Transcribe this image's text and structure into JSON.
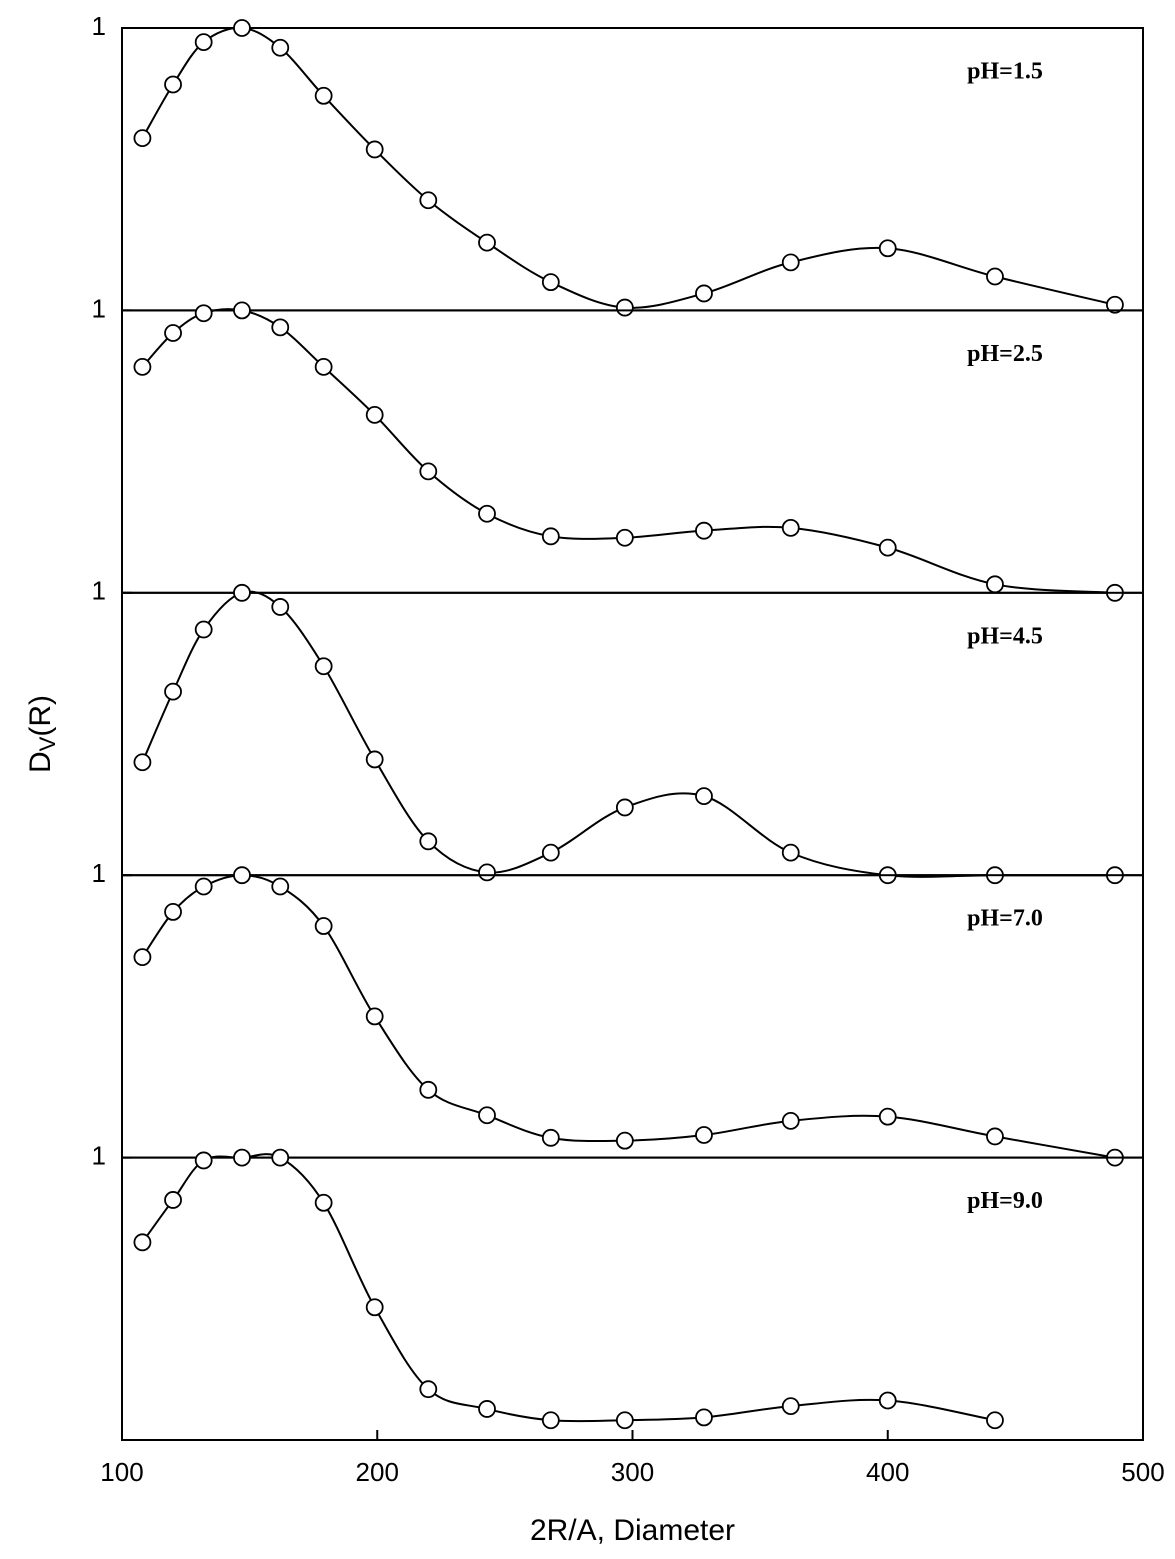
{
  "chart_data": [
    {
      "type": "line",
      "annotation": "pH=1.5",
      "ylabel": "DV(R)",
      "x": [
        108,
        120,
        132,
        147,
        162,
        179,
        199,
        220,
        243,
        268,
        297,
        328,
        362,
        400,
        442,
        489
      ],
      "values": [
        0.61,
        0.8,
        0.95,
        1.0,
        0.93,
        0.76,
        0.57,
        0.39,
        0.24,
        0.1,
        0.01,
        0.06,
        0.17,
        0.22,
        0.12,
        0.02
      ],
      "xlim": [
        100,
        500
      ],
      "ylim": [
        0,
        1
      ],
      "yticks": [
        1
      ],
      "color": "#000000"
    },
    {
      "type": "line",
      "annotation": "pH=2.5",
      "x": [
        108,
        120,
        132,
        147,
        162,
        179,
        199,
        220,
        243,
        268,
        297,
        328,
        362,
        400,
        442,
        489
      ],
      "values": [
        0.8,
        0.92,
        0.99,
        1.0,
        0.94,
        0.8,
        0.63,
        0.43,
        0.28,
        0.2,
        0.195,
        0.22,
        0.23,
        0.16,
        0.03,
        0.0
      ],
      "xlim": [
        100,
        500
      ],
      "ylim": [
        0,
        1
      ],
      "yticks": [
        1
      ],
      "color": "#000000"
    },
    {
      "type": "line",
      "annotation": "pH=4.5",
      "x": [
        108,
        120,
        132,
        147,
        162,
        179,
        199,
        220,
        243,
        268,
        297,
        328,
        362,
        400,
        442,
        489
      ],
      "values": [
        0.4,
        0.65,
        0.87,
        1.0,
        0.95,
        0.74,
        0.41,
        0.12,
        0.01,
        0.08,
        0.24,
        0.28,
        0.08,
        0.0,
        0.0,
        0.0
      ],
      "xlim": [
        100,
        500
      ],
      "ylim": [
        0,
        1
      ],
      "yticks": [
        1
      ],
      "color": "#000000"
    },
    {
      "type": "line",
      "annotation": "pH=7.0",
      "x": [
        108,
        120,
        132,
        147,
        162,
        179,
        199,
        220,
        243,
        268,
        297,
        328,
        362,
        400,
        442,
        489
      ],
      "values": [
        0.71,
        0.87,
        0.96,
        1.0,
        0.96,
        0.82,
        0.5,
        0.24,
        0.15,
        0.07,
        0.06,
        0.08,
        0.13,
        0.145,
        0.075,
        0.0
      ],
      "xlim": [
        100,
        500
      ],
      "ylim": [
        0,
        1
      ],
      "yticks": [
        1
      ],
      "color": "#000000"
    },
    {
      "type": "line",
      "annotation": "pH=9.0",
      "xlabel": "2R/A, Diameter",
      "x": [
        108,
        120,
        132,
        147,
        162,
        179,
        199,
        220,
        243,
        268,
        297,
        328,
        362,
        400,
        442
      ],
      "values": [
        0.7,
        0.85,
        0.99,
        1.0,
        1.0,
        0.84,
        0.47,
        0.18,
        0.11,
        0.07,
        0.07,
        0.08,
        0.12,
        0.14,
        0.07
      ],
      "xlim": [
        100,
        500
      ],
      "ylim": [
        0,
        1
      ],
      "yticks": [
        1
      ],
      "xticks": [
        100,
        200,
        300,
        400,
        500
      ],
      "color": "#000000"
    }
  ]
}
